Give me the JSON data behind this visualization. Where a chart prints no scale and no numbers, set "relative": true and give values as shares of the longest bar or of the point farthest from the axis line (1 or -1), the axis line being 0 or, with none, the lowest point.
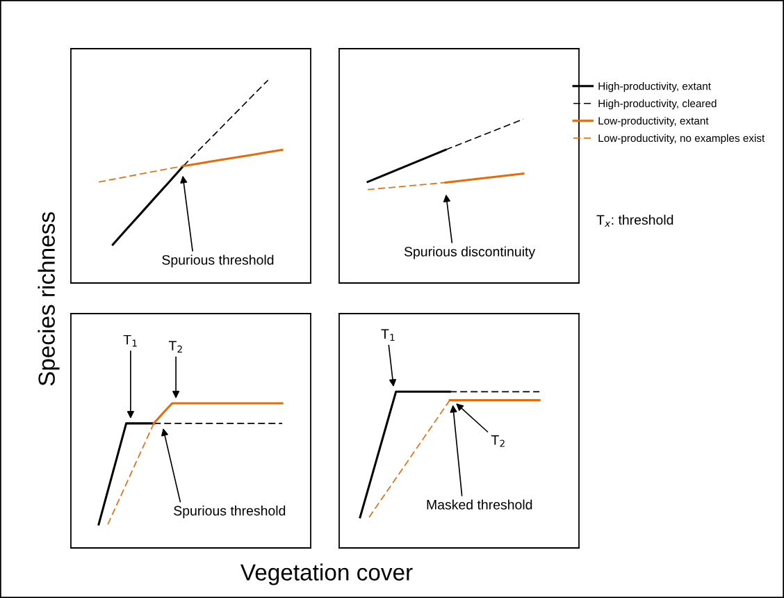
{
  "chart_data": [
    {
      "type": "line",
      "relative": true,
      "legend": "right",
      "ylabel": "Species richness",
      "categories": [
        null,
        null,
        null,
        null,
        null,
        null,
        null,
        null,
        null,
        null,
        null,
        null,
        null,
        null
      ],
      "annotations": [
        "Spurious threshold",
        "T$_{x}$: threshold"
      ],
      "series": [
        {
          "name": "High-productivity, extant",
          "color": "#000000",
          "line_style": "solid",
          "values": [
            null,
            0.189,
            0.267,
            0.344,
            0.422,
            0.499,
            0.577,
            null,
            null,
            null,
            null,
            null,
            null,
            null
          ]
        },
        {
          "name": "High-productivity, cleared",
          "color": "#000000",
          "line_style": "dashed",
          "values": [
            null,
            null,
            null,
            null,
            null,
            null,
            0.577,
            0.648,
            0.718,
            0.789,
            0.859,
            0.93,
            1.0,
            null
          ]
        },
        {
          "name": "Low-productivity, extant",
          "color": "#e46c0a",
          "line_style": "solid",
          "values": [
            null,
            null,
            null,
            null,
            null,
            null,
            0.577,
            0.588,
            0.6,
            0.611,
            0.622,
            0.633,
            0.645,
            0.656
          ]
        },
        {
          "name": "Low-productivity, no examples exist",
          "color": "#e46c0a",
          "line_style": "dashed",
          "values": [
            0.498,
            0.511,
            0.524,
            0.538,
            0.551,
            0.564,
            0.577,
            null,
            null,
            null,
            null,
            null,
            null,
            null
          ]
        }
      ]
    },
    {
      "type": "line",
      "relative": true,
      "categories": [
        null,
        null,
        null
      ],
      "annotations": [
        "Spurious discontinuity"
      ],
      "series": [
        {
          "color": "#000000",
          "line_style": "solid",
          "values": [
            0.617,
            0.813,
            null
          ]
        },
        {
          "color": "#000000",
          "line_style": "dashed",
          "values": [
            null,
            0.813,
            1.0
          ]
        },
        {
          "color": "#e46c0a",
          "line_style": "solid",
          "values": [
            null,
            0.613,
            0.668
          ]
        },
        {
          "color": "#e46c0a",
          "line_style": "dashed",
          "values": [
            0.57,
            0.613,
            null
          ]
        }
      ]
    },
    {
      "type": "line",
      "relative": true,
      "xlabel": "Vegetation cover",
      "categories": [
        null,
        null,
        null,
        null,
        null,
        null,
        null,
        null,
        null,
        null,
        null,
        null,
        null,
        null,
        null,
        null,
        null,
        null,
        null,
        null,
        null
      ],
      "annotations": [
        "T$_{1}$",
        "T$_{2}$",
        "Spurious threshold"
      ],
      "series": [
        {
          "color": "#000000",
          "line_style": "solid",
          "values": [
            0.163,
            0.396,
            0.628,
            0.861,
            0.861,
            0.861,
            0.861,
            null,
            null,
            null,
            null,
            null,
            null,
            null,
            null,
            null,
            null,
            null,
            null,
            null,
            null
          ]
        },
        {
          "color": "#000000",
          "line_style": "dashed",
          "values": [
            null,
            null,
            null,
            null,
            null,
            null,
            0.861,
            0.861,
            0.861,
            0.861,
            0.861,
            0.861,
            0.861,
            0.861,
            0.861,
            0.861,
            0.861,
            0.861,
            0.861,
            0.861,
            0.861
          ]
        },
        {
          "color": "#e46c0a",
          "line_style": "solid",
          "values": [
            null,
            null,
            null,
            null,
            null,
            null,
            0.861,
            0.931,
            1.0,
            1.0,
            1.0,
            1.0,
            1.0,
            1.0,
            1.0,
            1.0,
            1.0,
            1.0,
            1.0,
            1.0,
            1.0
          ]
        },
        {
          "color": "#e46c0a",
          "line_style": "dashed",
          "values": [
            null,
            0.163,
            0.303,
            0.442,
            0.582,
            0.721,
            0.861,
            null,
            null,
            null,
            null,
            null,
            null,
            null,
            null,
            null,
            null,
            null,
            null,
            null,
            null
          ]
        }
      ]
    },
    {
      "type": "line",
      "relative": true,
      "categories": [
        null,
        null,
        null,
        null,
        null,
        null,
        null,
        null,
        null,
        null,
        null,
        null,
        null,
        null,
        null,
        null,
        null,
        null,
        null,
        null,
        null
      ],
      "annotations": [
        "T$_{1}$",
        "T$_{2}$",
        "Masked threshold"
      ],
      "series": [
        {
          "color": "#000000",
          "line_style": "solid",
          "values": [
            0.196,
            0.397,
            0.598,
            0.799,
            1.0,
            1.0,
            1.0,
            1.0,
            1.0,
            1.0,
            1.0,
            null,
            null,
            null,
            null,
            null,
            null,
            null,
            null,
            null,
            null
          ]
        },
        {
          "color": "#000000",
          "line_style": "dashed",
          "values": [
            null,
            null,
            null,
            null,
            null,
            null,
            null,
            null,
            null,
            null,
            1.0,
            1.0,
            1.0,
            1.0,
            1.0,
            1.0,
            1.0,
            1.0,
            1.0,
            1.0,
            1.0
          ]
        },
        {
          "color": "#e46c0a",
          "line_style": "solid",
          "values": [
            null,
            null,
            null,
            null,
            null,
            null,
            null,
            null,
            null,
            null,
            0.946,
            0.946,
            0.946,
            0.946,
            0.946,
            0.946,
            0.946,
            0.946,
            0.946,
            0.946,
            0.946
          ]
        },
        {
          "color": "#e46c0a",
          "line_style": "dashed",
          "values": [
            null,
            0.196,
            0.279,
            0.363,
            0.446,
            0.529,
            0.613,
            0.696,
            0.779,
            0.863,
            0.946,
            null,
            null,
            null,
            null,
            null,
            null,
            null,
            null,
            null,
            null
          ]
        }
      ]
    }
  ]
}
